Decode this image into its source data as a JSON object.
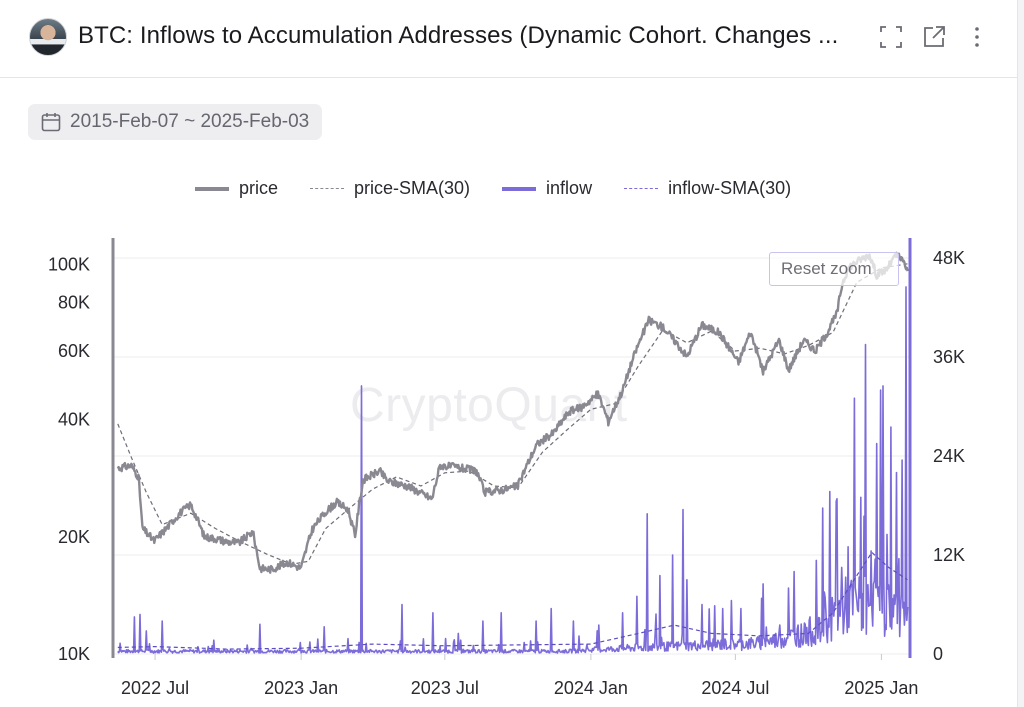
{
  "header": {
    "title": "BTC: Inflows to Accumulation Addresses (Dynamic Cohort. Changes ...",
    "icons": [
      "fullscreen-icon",
      "external-link-icon",
      "more-vertical-icon"
    ]
  },
  "date_range": {
    "label": "2015-Feb-07 ~ 2025-Feb-03",
    "icon": "calendar-icon"
  },
  "reset_zoom": "Reset zoom",
  "watermark": "CryptoQuant",
  "colors": {
    "price": "#8a8891",
    "inflow": "#7b6cd9",
    "grid": "#ececef"
  },
  "chart_data": {
    "type": "line",
    "x_ticks": [
      "2022 Jul",
      "2023 Jan",
      "2023 Jul",
      "2024 Jan",
      "2024 Jul",
      "2025 Jan"
    ],
    "y_left": {
      "scale": "log",
      "ticks": [
        "10K",
        "20K",
        "40K",
        "60K",
        "80K",
        "100K"
      ]
    },
    "y_right": {
      "scale": "linear",
      "ticks": [
        "0",
        "12K",
        "24K",
        "36K",
        "48K"
      ],
      "range": [
        0,
        48000
      ]
    },
    "legend_position": "top",
    "series": [
      {
        "name": "price",
        "axis": "left",
        "style": "solid",
        "points": [
          [
            "2022-05-15",
            30000
          ],
          [
            "2022-06-01",
            30500
          ],
          [
            "2022-06-10",
            28500
          ],
          [
            "2022-06-15",
            21000
          ],
          [
            "2022-06-30",
            19500
          ],
          [
            "2022-07-15",
            21000
          ],
          [
            "2022-08-01",
            23000
          ],
          [
            "2022-08-15",
            24200
          ],
          [
            "2022-09-01",
            20000
          ],
          [
            "2022-09-15",
            19800
          ],
          [
            "2022-10-01",
            19400
          ],
          [
            "2022-10-15",
            19300
          ],
          [
            "2022-11-01",
            20600
          ],
          [
            "2022-11-10",
            16600
          ],
          [
            "2022-11-25",
            16500
          ],
          [
            "2022-12-15",
            17200
          ],
          [
            "2023-01-01",
            16600
          ],
          [
            "2023-01-15",
            20900
          ],
          [
            "2023-02-01",
            23200
          ],
          [
            "2023-02-15",
            24500
          ],
          [
            "2023-03-01",
            23500
          ],
          [
            "2023-03-10",
            20100
          ],
          [
            "2023-03-20",
            28000
          ],
          [
            "2023-04-10",
            29500
          ],
          [
            "2023-04-20",
            27800
          ],
          [
            "2023-05-15",
            27000
          ],
          [
            "2023-06-15",
            25000
          ],
          [
            "2023-06-25",
            30500
          ],
          [
            "2023-07-15",
            30200
          ],
          [
            "2023-08-10",
            29500
          ],
          [
            "2023-08-20",
            26000
          ],
          [
            "2023-09-15",
            26500
          ],
          [
            "2023-10-01",
            27000
          ],
          [
            "2023-10-25",
            34500
          ],
          [
            "2023-11-15",
            37000
          ],
          [
            "2023-12-05",
            42000
          ],
          [
            "2023-12-20",
            43000
          ],
          [
            "2024-01-10",
            46500
          ],
          [
            "2024-01-23",
            39500
          ],
          [
            "2024-02-10",
            47500
          ],
          [
            "2024-02-28",
            61000
          ],
          [
            "2024-03-14",
            72000
          ],
          [
            "2024-04-01",
            69000
          ],
          [
            "2024-04-15",
            64000
          ],
          [
            "2024-05-01",
            58000
          ],
          [
            "2024-05-20",
            70000
          ],
          [
            "2024-06-10",
            67000
          ],
          [
            "2024-07-05",
            56000
          ],
          [
            "2024-07-20",
            67000
          ],
          [
            "2024-08-05",
            53000
          ],
          [
            "2024-08-25",
            64000
          ],
          [
            "2024-09-06",
            53500
          ],
          [
            "2024-09-25",
            64000
          ],
          [
            "2024-10-10",
            60000
          ],
          [
            "2024-10-25",
            67000
          ],
          [
            "2024-11-06",
            75000
          ],
          [
            "2024-11-13",
            90000
          ],
          [
            "2024-11-22",
            99000
          ],
          [
            "2024-12-05",
            103000
          ],
          [
            "2024-12-17",
            106000
          ],
          [
            "2024-12-26",
            94000
          ],
          [
            "2025-01-07",
            97000
          ],
          [
            "2025-01-20",
            106000
          ],
          [
            "2025-01-28",
            102000
          ],
          [
            "2025-02-03",
            97000
          ]
        ]
      },
      {
        "name": "price-SMA(30)",
        "axis": "left",
        "style": "dashed",
        "points": [
          [
            "2022-05-15",
            39000
          ],
          [
            "2022-06-01",
            32000
          ],
          [
            "2022-06-20",
            26000
          ],
          [
            "2022-07-10",
            21500
          ],
          [
            "2022-08-15",
            23000
          ],
          [
            "2022-09-15",
            21000
          ],
          [
            "2022-10-15",
            19500
          ],
          [
            "2022-11-20",
            18000
          ],
          [
            "2022-12-20",
            17000
          ],
          [
            "2023-01-10",
            17300
          ],
          [
            "2023-02-01",
            21000
          ],
          [
            "2023-03-01",
            23500
          ],
          [
            "2023-04-01",
            26500
          ],
          [
            "2023-05-01",
            28500
          ],
          [
            "2023-06-01",
            27000
          ],
          [
            "2023-07-01",
            29200
          ],
          [
            "2023-08-01",
            29500
          ],
          [
            "2023-09-01",
            27000
          ],
          [
            "2023-10-01",
            26700
          ],
          [
            "2023-11-01",
            33000
          ],
          [
            "2023-12-01",
            37500
          ],
          [
            "2024-01-01",
            42500
          ],
          [
            "2024-02-01",
            44000
          ],
          [
            "2024-03-01",
            55000
          ],
          [
            "2024-04-01",
            68000
          ],
          [
            "2024-05-01",
            63000
          ],
          [
            "2024-06-01",
            67500
          ],
          [
            "2024-07-01",
            60000
          ],
          [
            "2024-08-01",
            61000
          ],
          [
            "2024-09-01",
            59000
          ],
          [
            "2024-10-01",
            62000
          ],
          [
            "2024-11-01",
            67000
          ],
          [
            "2024-12-01",
            90000
          ],
          [
            "2025-01-01",
            98000
          ],
          [
            "2025-02-03",
            100500
          ]
        ]
      },
      {
        "name": "inflow",
        "axis": "right",
        "style": "solid",
        "base": [
          [
            "2022-05-15",
            300
          ],
          [
            "2023-12-01",
            300
          ],
          [
            "2024-03-01",
            700
          ],
          [
            "2024-08-01",
            1200
          ],
          [
            "2024-10-15",
            2500
          ],
          [
            "2024-11-20",
            5500
          ],
          [
            "2025-02-03",
            5000
          ]
        ],
        "spikes": [
          [
            "2022-05-18",
            1300
          ],
          [
            "2022-06-05",
            4500
          ],
          [
            "2022-06-12",
            4800
          ],
          [
            "2022-06-20",
            2800
          ],
          [
            "2022-07-10",
            4000
          ],
          [
            "2022-11-10",
            3600
          ],
          [
            "2023-01-30",
            3300
          ],
          [
            "2023-03-18",
            32500
          ],
          [
            "2023-05-08",
            6000
          ],
          [
            "2023-06-16",
            5000
          ],
          [
            "2023-07-18",
            2500
          ],
          [
            "2023-08-18",
            4000
          ],
          [
            "2023-09-10",
            5000
          ],
          [
            "2023-10-24",
            4000
          ],
          [
            "2023-11-12",
            5500
          ],
          [
            "2023-12-10",
            4000
          ],
          [
            "2024-01-11",
            3500
          ],
          [
            "2024-02-10",
            5000
          ],
          [
            "2024-02-28",
            7000
          ],
          [
            "2024-03-12",
            17000
          ],
          [
            "2024-03-28",
            9500
          ],
          [
            "2024-04-13",
            12000
          ],
          [
            "2024-04-26",
            17500
          ],
          [
            "2024-05-01",
            9000
          ],
          [
            "2024-05-20",
            6000
          ],
          [
            "2024-06-15",
            5500
          ],
          [
            "2024-07-08",
            5500
          ],
          [
            "2024-08-05",
            8500
          ],
          [
            "2024-09-06",
            8000
          ],
          [
            "2024-09-18",
            3500
          ],
          [
            "2024-10-03",
            4500
          ],
          [
            "2024-10-21",
            7500
          ],
          [
            "2024-11-05",
            18500
          ],
          [
            "2024-11-12",
            10500
          ],
          [
            "2024-11-20",
            13000
          ],
          [
            "2024-11-28",
            31000
          ],
          [
            "2024-12-06",
            19000
          ],
          [
            "2024-12-12",
            37500
          ],
          [
            "2024-12-19",
            12500
          ],
          [
            "2024-12-26",
            25500
          ],
          [
            "2025-01-03",
            32500
          ],
          [
            "2025-01-08",
            14500
          ],
          [
            "2025-01-13",
            27500
          ],
          [
            "2025-01-20",
            22000
          ],
          [
            "2025-01-27",
            23500
          ],
          [
            "2025-02-01",
            44500
          ]
        ]
      },
      {
        "name": "inflow-SMA(30)",
        "axis": "right",
        "style": "dashed",
        "points": [
          [
            "2022-05-15",
            800
          ],
          [
            "2022-07-01",
            900
          ],
          [
            "2022-10-01",
            600
          ],
          [
            "2023-01-01",
            700
          ],
          [
            "2023-04-01",
            1200
          ],
          [
            "2023-07-01",
            1000
          ],
          [
            "2023-10-01",
            1100
          ],
          [
            "2024-01-01",
            1200
          ],
          [
            "2024-03-01",
            2500
          ],
          [
            "2024-04-15",
            3500
          ],
          [
            "2024-06-01",
            2500
          ],
          [
            "2024-08-01",
            2200
          ],
          [
            "2024-10-01",
            2500
          ],
          [
            "2024-11-01",
            5000
          ],
          [
            "2024-12-01",
            9500
          ],
          [
            "2024-12-20",
            12300
          ],
          [
            "2025-01-10",
            10500
          ],
          [
            "2025-02-03",
            9000
          ]
        ]
      }
    ]
  }
}
